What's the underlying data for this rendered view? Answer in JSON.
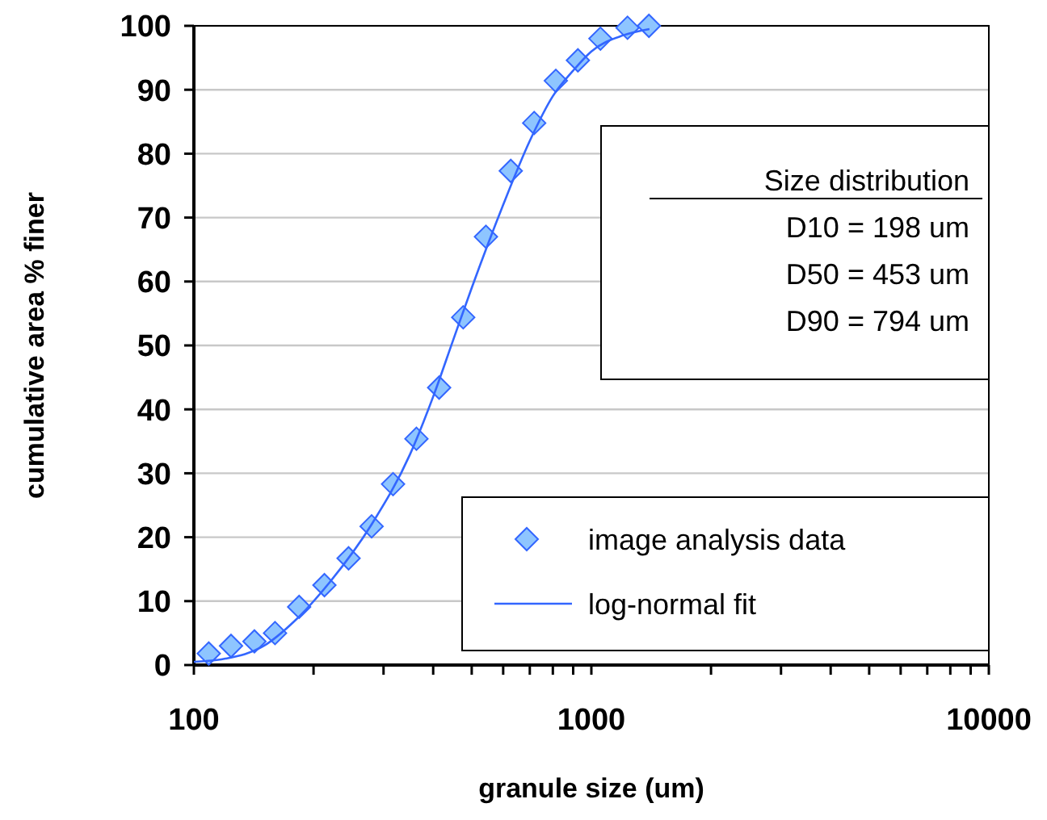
{
  "chart_data": {
    "type": "scatter",
    "xlabel": "granule size (um)",
    "ylabel": "cumulative area % finer",
    "log": "x",
    "xlim": [
      100,
      10000
    ],
    "ylim": [
      0,
      100
    ],
    "xticks": [
      100,
      {
        "value": 200,
        "label": null
      },
      {
        "value": 300,
        "label": null
      },
      {
        "value": 400,
        "label": null
      },
      {
        "value": 500,
        "label": null
      },
      {
        "value": 600,
        "label": null
      },
      {
        "value": 700,
        "label": null
      },
      {
        "value": 800,
        "label": null
      },
      {
        "value": 900,
        "label": null
      },
      1000,
      {
        "value": 2000,
        "label": null
      },
      {
        "value": 3000,
        "label": null
      },
      {
        "value": 4000,
        "label": null
      },
      {
        "value": 5000,
        "label": null
      },
      {
        "value": 6000,
        "label": null
      },
      {
        "value": 7000,
        "label": null
      },
      {
        "value": 8000,
        "label": null
      },
      {
        "value": 9000,
        "label": null
      },
      10000
    ],
    "yticks": [
      0,
      10,
      20,
      30,
      40,
      50,
      60,
      70,
      80,
      90,
      100
    ],
    "grid": "y",
    "legend": "bottom right",
    "annotations": [
      "Size distribution",
      "D10 = 198 um",
      "D50 = 453 um",
      "D90 = 794 um"
    ],
    "series": [
      {
        "name": "image analysis data",
        "marker": "diamond",
        "color": "#8ec5ff",
        "x": [
          109,
          124,
          142,
          160,
          184,
          213,
          245,
          280,
          317,
          363,
          414,
          476,
          543,
          627,
          718,
          814,
          925,
          1054,
          1233,
          1396
        ],
        "values": [
          1.8,
          3,
          3.7,
          5,
          9.1,
          12.5,
          16.7,
          21.7,
          28.3,
          35.4,
          43.4,
          54.4,
          67,
          77.3,
          84.8,
          91.4,
          94.6,
          98,
          99.7,
          100
        ]
      },
      {
        "name": "log-normal fit",
        "type": "line",
        "marker": "none",
        "line_style": "solid",
        "color": "#3366ff",
        "x": [
          100,
          120,
          150,
          180,
          220,
          280,
          350,
          400,
          450,
          500,
          600,
          700,
          800,
          900,
          1000,
          1200,
          1400
        ],
        "values": [
          0.5,
          1,
          3,
          7,
          13,
          22,
          33,
          42,
          51,
          59,
          72,
          82,
          89,
          93,
          96,
          98.5,
          99.5
        ]
      }
    ]
  }
}
